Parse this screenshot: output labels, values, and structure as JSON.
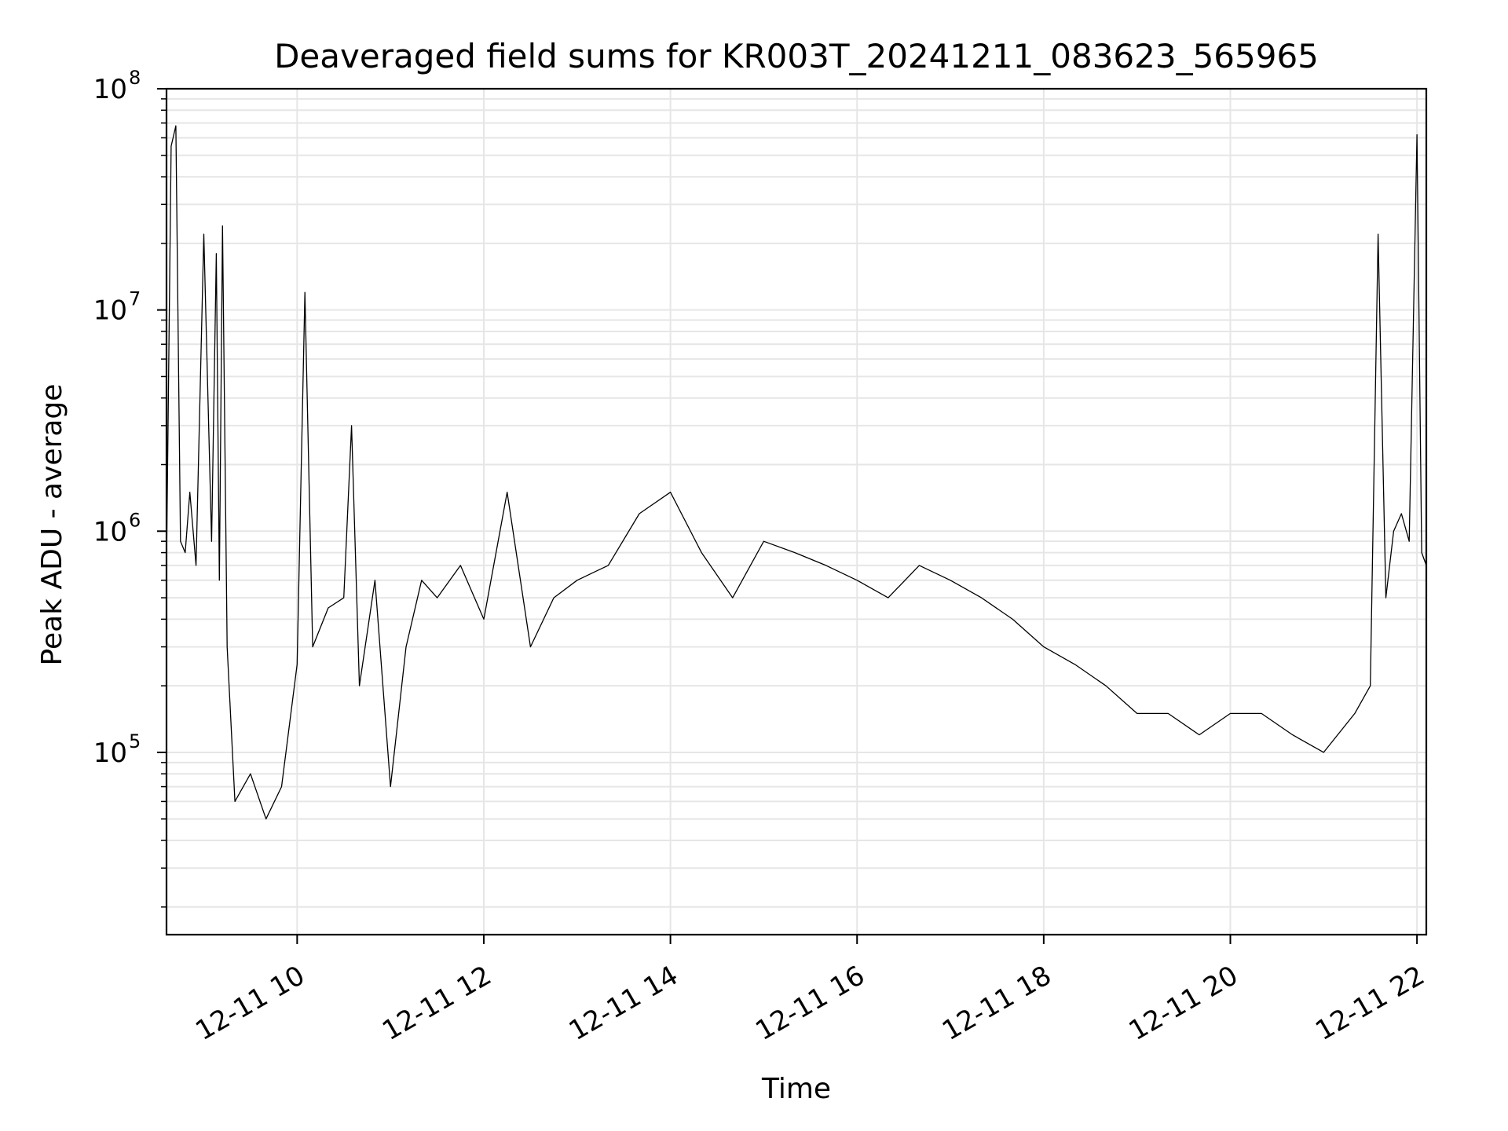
{
  "chart_data": {
    "type": "line",
    "title": "Deaveraged field sums for KR003T_20241211_083623_565965",
    "xlabel": "Time",
    "ylabel": "Peak ADU - average",
    "y_scale": "log",
    "ylim": [
      15000,
      100000000
    ],
    "xlim": [
      "2024-12-11T08:36",
      "2024-12-11T22:06"
    ],
    "grid": true,
    "line_color": "#000000",
    "x_ticks": [
      {
        "value": "2024-12-11T10:00",
        "label": "12-11 10"
      },
      {
        "value": "2024-12-11T12:00",
        "label": "12-11 12"
      },
      {
        "value": "2024-12-11T14:00",
        "label": "12-11 14"
      },
      {
        "value": "2024-12-11T16:00",
        "label": "12-11 16"
      },
      {
        "value": "2024-12-11T18:00",
        "label": "12-11 18"
      },
      {
        "value": "2024-12-11T20:00",
        "label": "12-11 20"
      },
      {
        "value": "2024-12-11T22:00",
        "label": "12-11 22"
      }
    ],
    "y_ticks": [
      {
        "value": 100000,
        "base": "10",
        "exp": "5"
      },
      {
        "value": 1000000,
        "base": "10",
        "exp": "6"
      },
      {
        "value": 10000000,
        "base": "10",
        "exp": "7"
      },
      {
        "value": 100000000,
        "base": "10",
        "exp": "8"
      }
    ],
    "series": [
      {
        "x": [
          "2024-12-11T08:36",
          "2024-12-11T08:39",
          "2024-12-11T08:42",
          "2024-12-11T08:45",
          "2024-12-11T08:48",
          "2024-12-11T08:51",
          "2024-12-11T08:55",
          "2024-12-11T09:00",
          "2024-12-11T09:05",
          "2024-12-11T09:08",
          "2024-12-11T09:10",
          "2024-12-11T09:12",
          "2024-12-11T09:15",
          "2024-12-11T09:20",
          "2024-12-11T09:30",
          "2024-12-11T09:40",
          "2024-12-11T09:50",
          "2024-12-11T10:00",
          "2024-12-11T10:05",
          "2024-12-11T10:10",
          "2024-12-11T10:20",
          "2024-12-11T10:30",
          "2024-12-11T10:35",
          "2024-12-11T10:40",
          "2024-12-11T10:50",
          "2024-12-11T11:00",
          "2024-12-11T11:10",
          "2024-12-11T11:20",
          "2024-12-11T11:30",
          "2024-12-11T11:45",
          "2024-12-11T12:00",
          "2024-12-11T12:15",
          "2024-12-11T12:30",
          "2024-12-11T12:45",
          "2024-12-11T13:00",
          "2024-12-11T13:20",
          "2024-12-11T13:40",
          "2024-12-11T14:00",
          "2024-12-11T14:20",
          "2024-12-11T14:40",
          "2024-12-11T15:00",
          "2024-12-11T15:20",
          "2024-12-11T15:40",
          "2024-12-11T16:00",
          "2024-12-11T16:20",
          "2024-12-11T16:40",
          "2024-12-11T17:00",
          "2024-12-11T17:20",
          "2024-12-11T17:40",
          "2024-12-11T18:00",
          "2024-12-11T18:20",
          "2024-12-11T18:40",
          "2024-12-11T19:00",
          "2024-12-11T19:20",
          "2024-12-11T19:40",
          "2024-12-11T20:00",
          "2024-12-11T20:20",
          "2024-12-11T20:40",
          "2024-12-11T21:00",
          "2024-12-11T21:20",
          "2024-12-11T21:30",
          "2024-12-11T21:35",
          "2024-12-11T21:40",
          "2024-12-11T21:45",
          "2024-12-11T21:50",
          "2024-12-11T21:55",
          "2024-12-11T22:00",
          "2024-12-11T22:03",
          "2024-12-11T22:06"
        ],
        "y": [
          700000,
          55000000,
          68000000,
          900000,
          800000,
          1500000,
          700000,
          22000000,
          900000,
          18000000,
          600000,
          24000000,
          300000,
          60000,
          80000,
          50000,
          70000,
          250000,
          12000000,
          300000,
          450000,
          500000,
          3000000,
          200000,
          600000,
          70000,
          300000,
          600000,
          500000,
          700000,
          400000,
          1500000,
          300000,
          500000,
          600000,
          700000,
          1200000,
          1500000,
          800000,
          500000,
          900000,
          800000,
          700000,
          600000,
          500000,
          700000,
          600000,
          500000,
          400000,
          300000,
          250000,
          200000,
          150000,
          150000,
          120000,
          150000,
          150000,
          120000,
          100000,
          150000,
          200000,
          22000000,
          500000,
          1000000,
          1200000,
          900000,
          62000000,
          800000,
          700000
        ]
      }
    ]
  }
}
